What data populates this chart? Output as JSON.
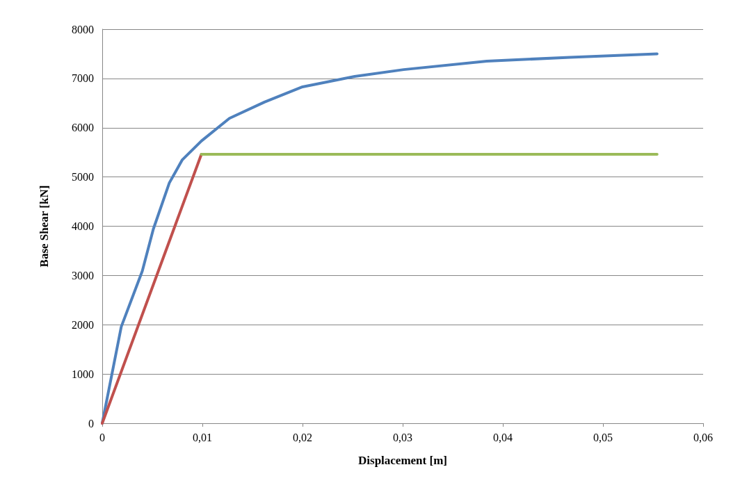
{
  "chart_data": {
    "type": "line",
    "xlabel": "Displacement [m]",
    "ylabel": "Base Shear [kN]",
    "xlim": [
      0,
      0.06
    ],
    "xticks": [
      0,
      {
        "value": 0.01,
        "label": "0,01"
      },
      {
        "value": 0.02,
        "label": "0,02"
      },
      {
        "value": 0.03,
        "label": "0,03"
      },
      {
        "value": 0.04,
        "label": "0,04"
      },
      {
        "value": 0.05,
        "label": "0,05"
      },
      {
        "value": 0.06,
        "label": "0,06"
      }
    ],
    "ylim": [
      0,
      8000
    ],
    "yticks": [
      0,
      1000,
      2000,
      3000,
      4000,
      5000,
      6000,
      7000,
      8000
    ],
    "grid": "y",
    "marker": "none",
    "line_style": "solid",
    "series": [
      {
        "color": "#4f81bd",
        "x": [
          0,
          0.0019,
          0.004,
          0.0051,
          0.0067,
          0.008,
          0.0099,
          0.0127,
          0.0162,
          0.02,
          0.0252,
          0.0301,
          0.0384,
          0.0467,
          0.0554
        ],
        "values": [
          0,
          1960,
          3090,
          3940,
          4880,
          5350,
          5730,
          6190,
          6520,
          6830,
          7040,
          7180,
          7350,
          7430,
          7500
        ]
      },
      {
        "color": "#c0504d",
        "x": [
          0,
          0.0099
        ],
        "values": [
          0,
          5460
        ]
      },
      {
        "color": "#9bbb59",
        "x": [
          0.0099,
          0.0554
        ],
        "values": [
          5460,
          5460
        ]
      }
    ]
  }
}
